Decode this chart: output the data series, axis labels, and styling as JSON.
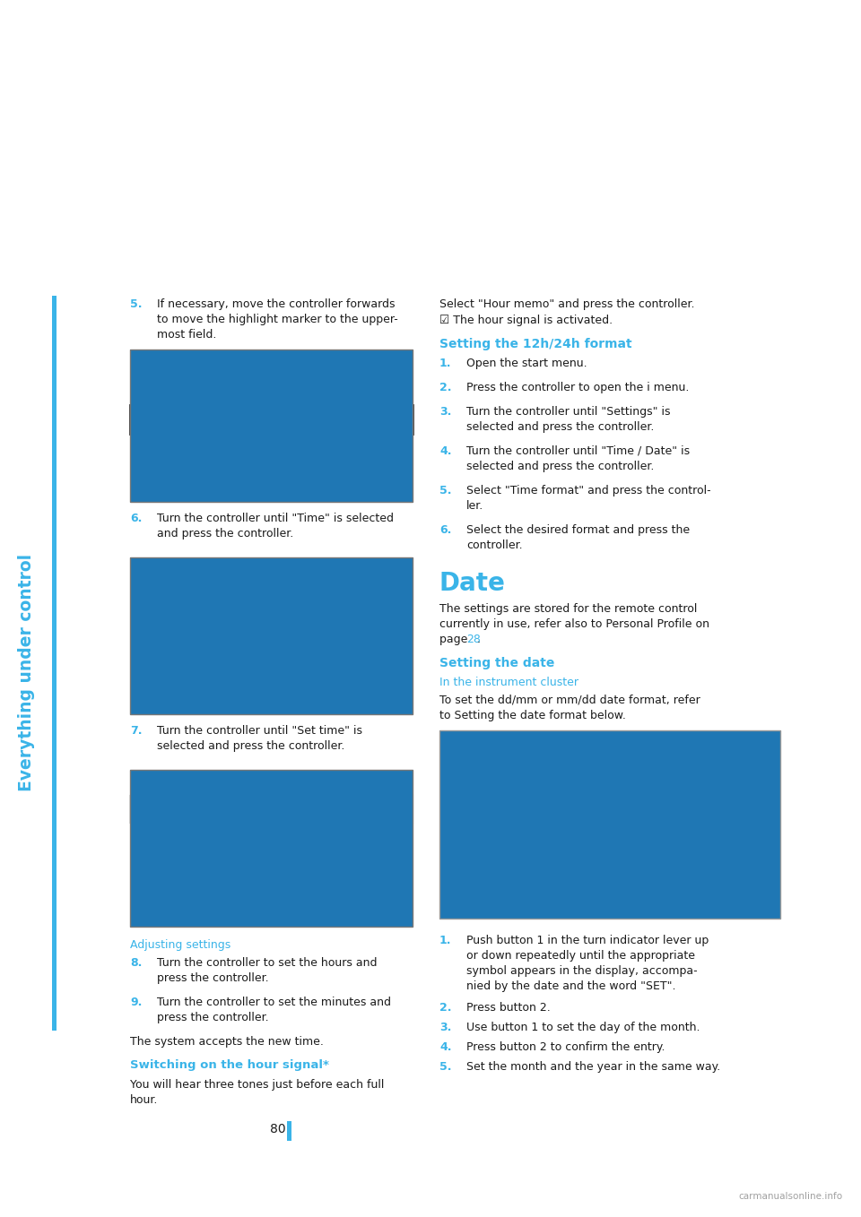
{
  "background_color": "#ffffff",
  "page_width": 9.6,
  "page_height": 13.58,
  "blue_color": "#3ab4e8",
  "text_color": "#1a1a1a",
  "sidebar_text": "Everything under control",
  "page_number": "80",
  "step5_num": "5.",
  "step5_text_line1": "If necessary, move the controller forwards",
  "step5_text_line2": "to move the highlight marker to the upper-",
  "step5_text_line3": "most field.",
  "step6_num": "6.",
  "step6_text_line1": "Turn the controller until \"Time\" is selected",
  "step6_text_line2": "and press the controller.",
  "step7_num": "7.",
  "step7_text_line1": "Turn the controller until \"Set time\" is",
  "step7_text_line2": "selected and press the controller.",
  "adj_heading": "Adjusting settings",
  "step8_num": "8.",
  "step8_text_line1": "Turn the controller to set the hours and",
  "step8_text_line2": "press the controller.",
  "step9_num": "9.",
  "step9_text_line1": "Turn the controller to set the minutes and",
  "step9_text_line2": "press the controller.",
  "system_accepts": "The system accepts the new time.",
  "hour_signal_heading": "Switching on the hour signal*",
  "hour_signal_text1": "You will hear three tones just before each full",
  "hour_signal_text2": "hour.",
  "right_select_hour": "Select \"Hour memo\" and press the controller.",
  "right_check_sym": "☑",
  "right_check_text": " The hour signal is activated.",
  "format_heading": "Setting the 12h/24h format",
  "format_step1": "Open the start menu.",
  "format_step2a": "Press the controller to open the ",
  "format_step2b": "i",
  "format_step2c": " menu.",
  "format_step3_line1": "Turn the controller until \"Settings\" is",
  "format_step3_line2": "selected and press the controller.",
  "format_step4_line1": "Turn the controller until \"Time / Date\" is",
  "format_step4_line2": "selected and press the controller.",
  "format_step5_line1": "Select \"Time format\" and press the control-",
  "format_step5_line2": "ler.",
  "format_step6_line1": "Select the desired format and press the",
  "format_step6_line2": "controller.",
  "date_heading": "Date",
  "date_text1": "The settings are stored for the remote control",
  "date_text2": "currently in use, refer also to Personal Profile on",
  "date_text3": "page ",
  "date_link": "28",
  "date_text3b": ".",
  "setting_date_heading": "Setting the date",
  "instr_cluster_heading": "In the instrument cluster",
  "instr_text1": "To set the dd/mm or mm/dd date format, refer",
  "instr_text2": "to Setting the date format below.",
  "cluster_step1_line1": "Push button ",
  "cluster_step1_b1": "1",
  "cluster_step1_line2": " in the turn indicator lever up",
  "cluster_step1_line3": "or down repeatedly until the appropriate",
  "cluster_step1_line4": "symbol appears in the display, accompa-",
  "cluster_step1_line5": "nied by the date and the word \"SET\".",
  "cluster_step2a": "Press button ",
  "cluster_step2b": "2",
  "cluster_step2c": ".",
  "cluster_step3a": "Use button ",
  "cluster_step3b": "1",
  "cluster_step3c": " to set the day of the month.",
  "cluster_step4a": "Press button ",
  "cluster_step4b": "2",
  "cluster_step4c": " to confirm the entry.",
  "cluster_step5": "Set the month and the year in the same way.",
  "watermark": "carmanualsonline.info"
}
